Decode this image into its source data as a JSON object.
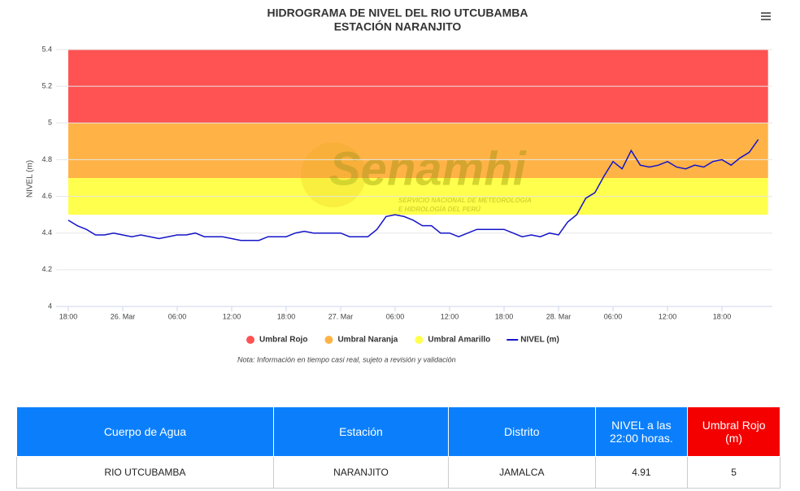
{
  "chart_data": {
    "type": "line",
    "title": "HIDROGRAMA DE NIVEL DEL RIO UTCUBAMBA",
    "subtitle": "ESTACIÓN NARANJITO",
    "y_label": "NIVEL (m)",
    "watermark": {
      "name": "Senamhi",
      "line1": "SERVICIO NACIONAL DE METEOROLOGÍA",
      "line2": "E HIDROLOGÍA DEL PERÚ"
    },
    "x": [
      0,
      1,
      2,
      3,
      4,
      5,
      6,
      7,
      8,
      9,
      10,
      11,
      12,
      13,
      14,
      15,
      16,
      17,
      18,
      19,
      20,
      21,
      22,
      23,
      24,
      25,
      26,
      27,
      28,
      29,
      30,
      31,
      32,
      33,
      34,
      35,
      36,
      37,
      38,
      39,
      40,
      41,
      42,
      43,
      44,
      45,
      46,
      47,
      48,
      49,
      50,
      51,
      52,
      53,
      54,
      55,
      56,
      57,
      58,
      59,
      60,
      61,
      62,
      63,
      64,
      65,
      66,
      67,
      68,
      69,
      70,
      71,
      72,
      73,
      74,
      75,
      76
    ],
    "xlim": [
      -1.34,
      77.55
    ],
    "xticks": [
      {
        "value": 0,
        "label": "18:00"
      },
      {
        "value": 6,
        "label": "26. Mar"
      },
      {
        "value": 12,
        "label": "06:00"
      },
      {
        "value": 18,
        "label": "12:00"
      },
      {
        "value": 24,
        "label": "18:00"
      },
      {
        "value": 30,
        "label": "27. Mar"
      },
      {
        "value": 36,
        "label": "06:00"
      },
      {
        "value": 42,
        "label": "12:00"
      },
      {
        "value": 48,
        "label": "18:00"
      },
      {
        "value": 54,
        "label": "28. Mar"
      },
      {
        "value": 60,
        "label": "06:00"
      },
      {
        "value": 66,
        "label": "12:00"
      },
      {
        "value": 72,
        "label": "18:00"
      }
    ],
    "ylim": [
      4,
      5.4
    ],
    "yticks": [
      4,
      4.2,
      4.4,
      4.6,
      4.8,
      5,
      5.2,
      5.4
    ],
    "grid": true,
    "bands": [
      {
        "name": "Umbral Rojo",
        "color": "#ff5252",
        "from": 5,
        "to": 5.4
      },
      {
        "name": "Umbral Naranja",
        "color": "#ffb347",
        "from": 4.7,
        "to": 5
      },
      {
        "name": "Umbral Amarillo",
        "color": "#ffff4d",
        "from": 4.5,
        "to": 4.7
      }
    ],
    "series": [
      {
        "name": "NIVEL (m)",
        "color": "#1414c8",
        "values": [
          4.47,
          4.44,
          4.42,
          4.39,
          4.39,
          4.4,
          4.39,
          4.38,
          4.39,
          4.38,
          4.37,
          4.38,
          4.39,
          4.39,
          4.4,
          4.38,
          4.38,
          4.38,
          4.37,
          4.36,
          4.36,
          4.36,
          4.38,
          4.38,
          4.38,
          4.4,
          4.41,
          4.4,
          4.4,
          4.4,
          4.4,
          4.38,
          4.38,
          4.38,
          4.42,
          4.49,
          4.5,
          4.49,
          4.47,
          4.44,
          4.44,
          4.4,
          4.4,
          4.38,
          4.4,
          4.42,
          4.42,
          4.42,
          4.42,
          4.4,
          4.38,
          4.39,
          4.38,
          4.4,
          4.39,
          4.46,
          4.5,
          4.59,
          4.62,
          4.71,
          4.79,
          4.75,
          4.85,
          4.77,
          4.76,
          4.77,
          4.79,
          4.76,
          4.75,
          4.77,
          4.76,
          4.79,
          4.8,
          4.77,
          4.81,
          4.84,
          4.91
        ]
      }
    ],
    "note": "Nota: Información en tiempo casi real, sujeto a revisión y validación"
  },
  "table": {
    "header": [
      "Cuerpo de Agua",
      "Estación",
      "Distrito",
      "NIVEL a las 22:00 horas.",
      "Umbral Rojo (m)"
    ],
    "rows": [
      [
        "RIO UTCUBAMBA",
        "NARANJITO",
        "JAMALCA",
        "4.91",
        "5"
      ]
    ]
  }
}
